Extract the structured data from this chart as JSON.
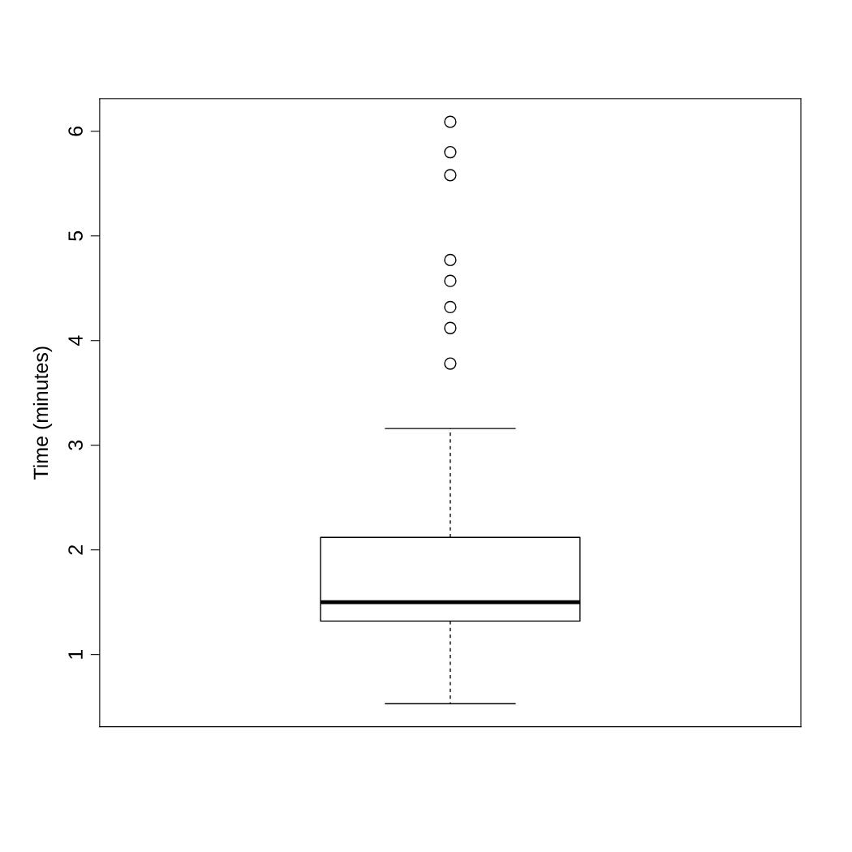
{
  "chart_data": {
    "type": "box",
    "ylabel": "Time (minutes)",
    "categories": [
      null
    ],
    "boxes": [
      {
        "low": 0.53,
        "q1": 1.32,
        "median": 1.5,
        "q3": 2.12,
        "high": 3.16,
        "outliers": [
          3.78,
          4.12,
          4.32,
          4.57,
          4.77,
          5.58,
          5.8,
          6.09
        ]
      }
    ],
    "ylim": [
      0.31,
      6.31
    ],
    "yticks": [
      1,
      2,
      3,
      4,
      5,
      6
    ],
    "tick_labels": "y",
    "grid": false,
    "legend": false
  }
}
